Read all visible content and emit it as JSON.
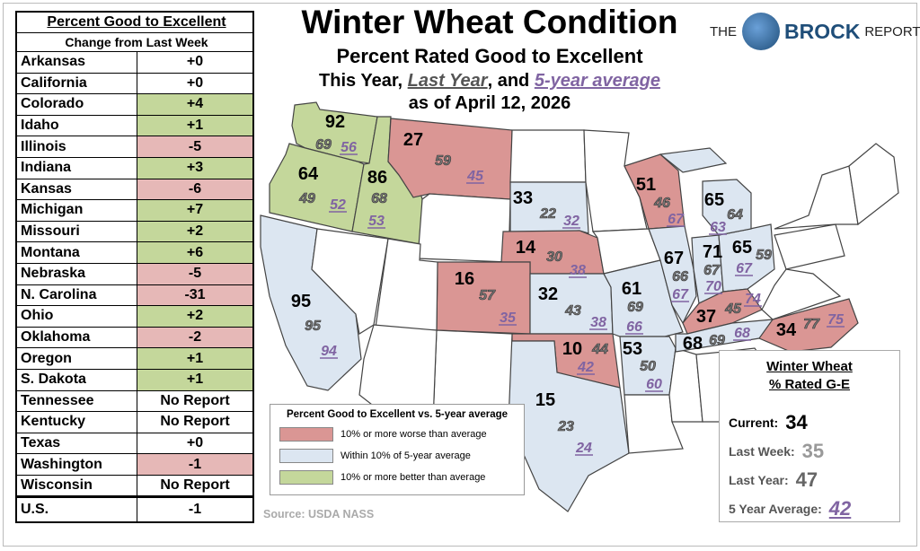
{
  "title": "Winter Wheat Condition",
  "subtitle": "Percent Rated Good to Excellent",
  "line3": {
    "a": "This Year, ",
    "b": "Last Year",
    "c": ", and ",
    "d": "5-year average"
  },
  "date": "as of April 12, 2026",
  "logo": {
    "the": "THE",
    "brock": "BROCK",
    "report": "REPORT"
  },
  "table": {
    "header1": "Percent Good to Excellent",
    "header2": "Change from Last Week",
    "rows": [
      {
        "state": "Arkansas",
        "change": "+0",
        "cls": ""
      },
      {
        "state": "California",
        "change": "+0",
        "cls": ""
      },
      {
        "state": "Colorado",
        "change": "+4",
        "cls": "g"
      },
      {
        "state": "Idaho",
        "change": "+1",
        "cls": "g"
      },
      {
        "state": "Illinois",
        "change": "-5",
        "cls": "r"
      },
      {
        "state": "Indiana",
        "change": "+3",
        "cls": "g"
      },
      {
        "state": "Kansas",
        "change": "-6",
        "cls": "r"
      },
      {
        "state": "Michigan",
        "change": "+7",
        "cls": "g"
      },
      {
        "state": "Missouri",
        "change": "+2",
        "cls": "g"
      },
      {
        "state": "Montana",
        "change": "+6",
        "cls": "g"
      },
      {
        "state": "Nebraska",
        "change": "-5",
        "cls": "r"
      },
      {
        "state": "N. Carolina",
        "change": "-31",
        "cls": "r"
      },
      {
        "state": "Ohio",
        "change": "+2",
        "cls": "g"
      },
      {
        "state": "Oklahoma",
        "change": "-2",
        "cls": "r"
      },
      {
        "state": "Oregon",
        "change": "+1",
        "cls": "g"
      },
      {
        "state": "S. Dakota",
        "change": "+1",
        "cls": "g"
      },
      {
        "state": "Tennessee",
        "change": "No Report",
        "cls": ""
      },
      {
        "state": "Kentucky",
        "change": "No Report",
        "cls": ""
      },
      {
        "state": "Texas",
        "change": "+0",
        "cls": ""
      },
      {
        "state": "Washington",
        "change": "-1",
        "cls": "r"
      },
      {
        "state": "Wisconsin",
        "change": "No Report",
        "cls": ""
      }
    ],
    "us": {
      "state": "U.S.",
      "change": "-1"
    }
  },
  "colors": {
    "worse": "#da9694",
    "within": "#dce6f1",
    "better": "#c4d79b",
    "avg": "#8064a2",
    "last": "#555555"
  },
  "states": {
    "WA": {
      "now": "92",
      "last": "69",
      "avg": "56",
      "cat": "better"
    },
    "OR": {
      "now": "64",
      "last": "49",
      "avg": "52",
      "cat": "better"
    },
    "ID": {
      "now": "86",
      "last": "68",
      "avg": "53",
      "cat": "better"
    },
    "MT": {
      "now": "27",
      "last": "59",
      "avg": "45",
      "cat": "worse"
    },
    "SD": {
      "now": "33",
      "last": "22",
      "avg": "32",
      "cat": "within"
    },
    "NE": {
      "now": "14",
      "last": "30",
      "avg": "38",
      "cat": "worse"
    },
    "CO": {
      "now": "16",
      "last": "57",
      "avg": "35",
      "cat": "worse"
    },
    "KS": {
      "now": "32",
      "last": "43",
      "avg": "38",
      "cat": "within"
    },
    "OK": {
      "now": "10",
      "last": "44",
      "avg": "42",
      "cat": "worse"
    },
    "TX": {
      "now": "15",
      "last": "23",
      "avg": "24",
      "cat": "within"
    },
    "CA": {
      "now": "95",
      "last": "95",
      "avg": "94",
      "cat": "within"
    },
    "MO": {
      "now": "61",
      "last": "69",
      "avg": "66",
      "cat": "within"
    },
    "AR": {
      "now": "53",
      "last": "50",
      "avg": "60",
      "cat": "within"
    },
    "IL": {
      "now": "67",
      "last": "66",
      "avg": "67",
      "cat": "within"
    },
    "IN": {
      "now": "71",
      "last": "67",
      "avg": "70",
      "cat": "within"
    },
    "OH": {
      "now": "65",
      "last": "59",
      "avg": "67",
      "cat": "within"
    },
    "MI": {
      "now": "65",
      "last": "64",
      "avg": "63",
      "cat": "within"
    },
    "WI": {
      "now": "51",
      "last": "46",
      "avg": "67",
      "cat": "worse"
    },
    "KY": {
      "now": "37",
      "last": "45",
      "avg": "74",
      "cat": "worse"
    },
    "TN": {
      "now": "68",
      "last": "69",
      "avg": "68",
      "cat": "within"
    },
    "NC": {
      "now": "34",
      "last": "77",
      "avg": "75",
      "cat": "worse"
    }
  },
  "legend": {
    "title": "Percent Good to Excellent vs. 5-year average",
    "worse": "10% or more worse than average",
    "within": "Within 10% of 5-year average",
    "better": "10% or more better than average"
  },
  "summary": {
    "title1": "Winter Wheat",
    "title2": "% Rated G-E",
    "current_label": "Current:",
    "current": "34",
    "lastweek_label": "Last Week:",
    "lastweek": "35",
    "lastyear_label": "Last Year:",
    "lastyear": "47",
    "avg_label": "5 Year Average:",
    "avg": "42"
  },
  "source": "Source: USDA NASS"
}
